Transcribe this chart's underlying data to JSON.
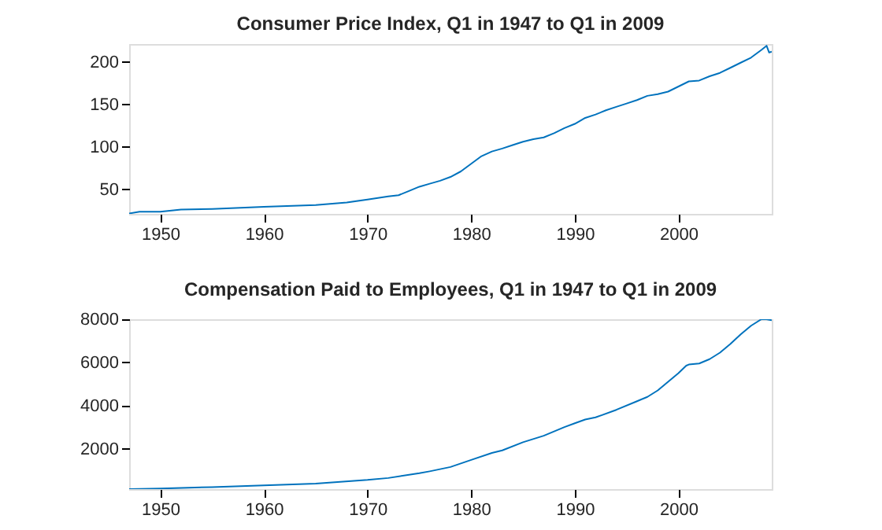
{
  "chart_data": [
    {
      "type": "line",
      "title": "Consumer Price Index, Q1 in 1947 to Q1 in 2009",
      "xlim": [
        1947,
        2009
      ],
      "xticks": [
        1950,
        1960,
        1970,
        1980,
        1990,
        2000
      ],
      "ylim": [
        21,
        221
      ],
      "yticks": [
        50,
        100,
        150,
        200
      ],
      "grid": false,
      "x": [
        1947,
        1948,
        1950,
        1952,
        1955,
        1960,
        1965,
        1968,
        1970,
        1972,
        1973,
        1974,
        1975,
        1976,
        1977,
        1978,
        1979,
        1980,
        1981,
        1982,
        1983,
        1984,
        1985,
        1986,
        1987,
        1988,
        1989,
        1990,
        1991,
        1992,
        1993,
        1994,
        1995,
        1996,
        1997,
        1998,
        1999,
        2000,
        2001,
        2002,
        2003,
        2004,
        2005,
        2006,
        2007,
        2008,
        2008.5,
        2008.75,
        2009
      ],
      "series": [
        {
          "color": "#0072bd",
          "values": [
            21.5,
            23.5,
            23.5,
            26,
            26.8,
            29.4,
            31.5,
            34.5,
            38,
            41.5,
            43,
            48,
            53,
            56.5,
            60,
            64.5,
            71,
            80,
            89,
            94.5,
            98,
            102,
            106,
            109,
            111,
            116,
            122,
            127,
            134,
            138,
            143,
            147,
            151,
            155,
            160,
            162,
            165,
            171,
            177,
            178,
            183,
            187,
            193,
            199,
            205,
            214,
            219,
            211,
            212
          ]
        }
      ]
    },
    {
      "type": "line",
      "title": "Compensation Paid to Employees, Q1 in 1947 to Q1 in 2009",
      "xlim": [
        1947,
        2009
      ],
      "xticks": [
        1950,
        1960,
        1970,
        1980,
        1990,
        2000
      ],
      "ylim": [
        125,
        8000
      ],
      "yticks": [
        2000,
        4000,
        6000,
        8000
      ],
      "grid": false,
      "x": [
        1947,
        1950,
        1955,
        1960,
        1965,
        1970,
        1972,
        1975,
        1976,
        1978,
        1980,
        1982,
        1983,
        1985,
        1987,
        1989,
        1990,
        1991,
        1992,
        1994,
        1996,
        1997,
        1998,
        1999,
        2000,
        2000.75,
        2001,
        2002,
        2003,
        2004,
        2005,
        2006,
        2007,
        2008,
        2008.5,
        2009
      ],
      "series": [
        {
          "color": "#0072bd",
          "values": [
            125,
            150,
            220,
            300,
            380,
            550,
            640,
            860,
            950,
            1150,
            1480,
            1800,
            1920,
            2300,
            2600,
            3000,
            3180,
            3350,
            3450,
            3800,
            4200,
            4400,
            4700,
            5100,
            5500,
            5850,
            5900,
            5950,
            6150,
            6450,
            6850,
            7300,
            7700,
            8000,
            8000,
            7950
          ]
        }
      ]
    }
  ]
}
